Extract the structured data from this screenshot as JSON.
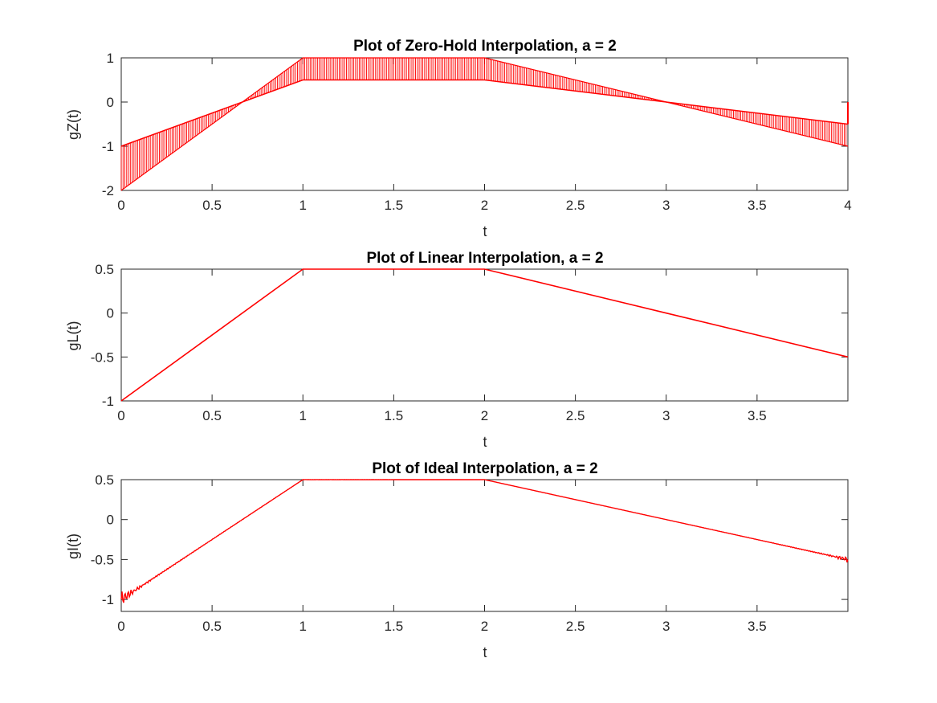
{
  "figure": {
    "background": "#ffffff",
    "line_color": "#ff0000"
  },
  "chart_data": [
    {
      "type": "line",
      "title": "Plot of Zero-Hold Interpolation, a = 2",
      "xlabel": "t",
      "ylabel": "gZ(t)",
      "xlim": [
        0,
        4
      ],
      "ylim": [
        -2,
        1
      ],
      "xticks": [
        0,
        0.5,
        1,
        1.5,
        2,
        2.5,
        3,
        3.5,
        4
      ],
      "xtick_labels": [
        "0",
        "0.5",
        "1",
        "1.5",
        "2",
        "2.5",
        "3",
        "3.5",
        "4"
      ],
      "yticks": [
        -2,
        -1,
        0,
        1
      ],
      "ytick_labels": [
        "-2",
        "-1",
        "0",
        "1"
      ],
      "grid": false,
      "style": "zero-hold",
      "series": [
        {
          "color": "#ff0000",
          "x": [
            0,
            1,
            2,
            3,
            4
          ],
          "y": [
            -1,
            0.5,
            0.5,
            0,
            -0.5
          ],
          "lower_x": [
            0,
            1,
            2,
            3,
            4
          ],
          "lower_y": [
            -2,
            1,
            1,
            0,
            -1
          ],
          "end_value": 0
        }
      ]
    },
    {
      "type": "line",
      "title": "Plot of Linear Interpolation, a = 2",
      "xlabel": "t",
      "ylabel": "gL(t)",
      "xlim": [
        0,
        4
      ],
      "ylim": [
        -1,
        0.5
      ],
      "xticks": [
        0,
        0.5,
        1,
        1.5,
        2,
        2.5,
        3,
        3.5
      ],
      "xtick_labels": [
        "0",
        "0.5",
        "1",
        "1.5",
        "2",
        "2.5",
        "3",
        "3.5"
      ],
      "yticks": [
        -1,
        -0.5,
        0,
        0.5
      ],
      "ytick_labels": [
        "-1",
        "-0.5",
        "0",
        "0.5"
      ],
      "grid": false,
      "style": "line",
      "series": [
        {
          "color": "#ff0000",
          "x": [
            0,
            1,
            2,
            3,
            4
          ],
          "y": [
            -1,
            0.5,
            0.5,
            0,
            -0.5
          ]
        }
      ]
    },
    {
      "type": "line",
      "title": "Plot of Ideal Interpolation, a = 2",
      "xlabel": "t",
      "ylabel": "gI(t)",
      "xlim": [
        0,
        4
      ],
      "ylim": [
        -1.15,
        0.5
      ],
      "xticks": [
        0,
        0.5,
        1,
        1.5,
        2,
        2.5,
        3,
        3.5
      ],
      "xtick_labels": [
        "0",
        "0.5",
        "1",
        "1.5",
        "2",
        "2.5",
        "3",
        "3.5"
      ],
      "yticks": [
        -1,
        -0.5,
        0,
        0.5
      ],
      "ytick_labels": [
        "-1",
        "-0.5",
        "0",
        "0.5"
      ],
      "grid": false,
      "style": "ripple",
      "series": [
        {
          "color": "#ff0000",
          "x": [
            0,
            1,
            2,
            3,
            4
          ],
          "y": [
            -1,
            0.5,
            0.5,
            0,
            -0.5
          ]
        }
      ]
    }
  ]
}
